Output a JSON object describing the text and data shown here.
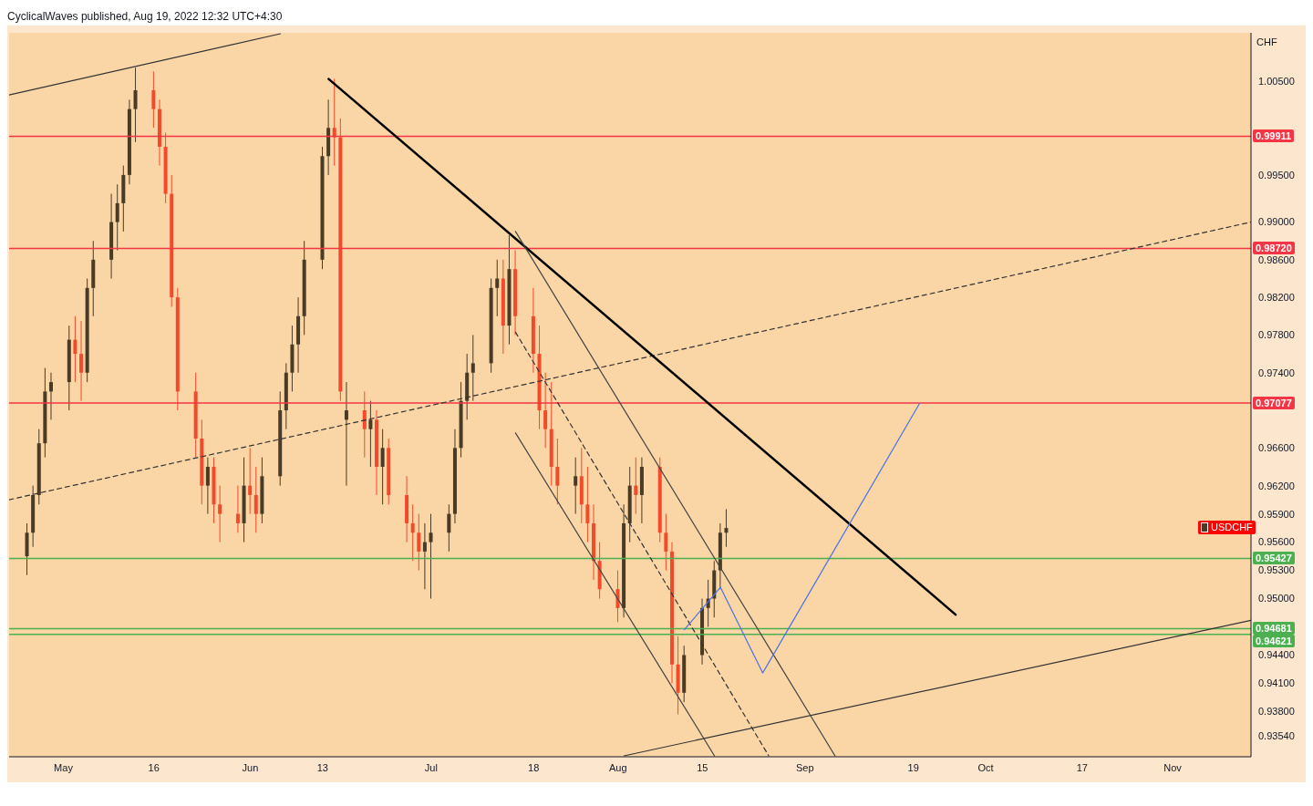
{
  "chart_data": {
    "type": "candlestick",
    "title": "CyclicalWaves published, Aug 19, 2022 12:32 UTC+4:30",
    "ylabel": "CHF",
    "xlim": [
      "2022-04-22",
      "2022-11-14"
    ],
    "xticks": [
      {
        "value": "2022-05-01",
        "label": "May"
      },
      {
        "value": "2022-05-16",
        "label": "16"
      },
      {
        "value": "2022-06-01",
        "label": "Jun"
      },
      {
        "value": "2022-06-13",
        "label": "13"
      },
      {
        "value": "2022-07-01",
        "label": "Jul"
      },
      {
        "value": "2022-07-18",
        "label": "18"
      },
      {
        "value": "2022-08-01",
        "label": "Aug"
      },
      {
        "value": "2022-08-15",
        "label": "15"
      },
      {
        "value": "2022-09-01",
        "label": "Sep"
      },
      {
        "value": "2022-09-19",
        "label": "19"
      },
      {
        "value": "2022-10-01",
        "label": "Oct"
      },
      {
        "value": "2022-10-17",
        "label": "17"
      },
      {
        "value": "2022-11-01",
        "label": "Nov"
      }
    ],
    "ylim": [
      0.9332,
      1.0101
    ],
    "yticks": [
      {
        "value": 1.005,
        "label": "1.00500"
      },
      {
        "value": 0.995,
        "label": "0.99500"
      },
      {
        "value": 0.99,
        "label": "0.99000"
      },
      {
        "value": 0.986,
        "label": "0.98600"
      },
      {
        "value": 0.982,
        "label": "0.98200"
      },
      {
        "value": 0.978,
        "label": "0.97800"
      },
      {
        "value": 0.974,
        "label": "0.97400"
      },
      {
        "value": 0.966,
        "label": "0.96600"
      },
      {
        "value": 0.962,
        "label": "0.96200"
      },
      {
        "value": 0.959,
        "label": "0.95900"
      },
      {
        "value": 0.956,
        "label": "0.95600"
      },
      {
        "value": 0.953,
        "label": "0.95300"
      },
      {
        "value": 0.95,
        "label": "0.95000"
      },
      {
        "value": 0.944,
        "label": "0.94400"
      },
      {
        "value": 0.941,
        "label": "0.94100"
      },
      {
        "value": 0.938,
        "label": "0.93800"
      },
      {
        "value": 0.9354,
        "label": "0.93540"
      }
    ],
    "legend": "right",
    "ref_lines": [
      {
        "axis": "y",
        "value": 0.99911,
        "label": "0.99911",
        "color": "#f23645"
      },
      {
        "axis": "y",
        "value": 0.9872,
        "label": "0.98720",
        "color": "#f23645"
      },
      {
        "axis": "y",
        "value": 0.97077,
        "label": "0.97077",
        "color": "#f23645"
      },
      {
        "axis": "y",
        "value": 0.95427,
        "label": "0.95427",
        "color": "#4caf50"
      },
      {
        "axis": "y",
        "value": 0.94681,
        "label": "0.94681",
        "color": "#4caf50"
      },
      {
        "axis": "y",
        "value": 0.94621,
        "label": "0.94621",
        "color": "#4caf50"
      }
    ],
    "series": [
      {
        "name": "USDCHF",
        "color": "#ff0000",
        "x": [
          "2022-04-25",
          "2022-04-26",
          "2022-04-27",
          "2022-04-28",
          "2022-04-29",
          "2022-05-02",
          "2022-05-03",
          "2022-05-04",
          "2022-05-05",
          "2022-05-06",
          "2022-05-09",
          "2022-05-10",
          "2022-05-11",
          "2022-05-12",
          "2022-05-13",
          "2022-05-16",
          "2022-05-17",
          "2022-05-18",
          "2022-05-19",
          "2022-05-20",
          "2022-05-23",
          "2022-05-24",
          "2022-05-25",
          "2022-05-26",
          "2022-05-27",
          "2022-05-30",
          "2022-05-31",
          "2022-06-01",
          "2022-06-02",
          "2022-06-03",
          "2022-06-06",
          "2022-06-07",
          "2022-06-08",
          "2022-06-09",
          "2022-06-10",
          "2022-06-13",
          "2022-06-14",
          "2022-06-15",
          "2022-06-16",
          "2022-06-17",
          "2022-06-20",
          "2022-06-21",
          "2022-06-22",
          "2022-06-23",
          "2022-06-24",
          "2022-06-27",
          "2022-06-28",
          "2022-06-29",
          "2022-06-30",
          "2022-07-01",
          "2022-07-04",
          "2022-07-05",
          "2022-07-06",
          "2022-07-07",
          "2022-07-08",
          "2022-07-11",
          "2022-07-12",
          "2022-07-13",
          "2022-07-14",
          "2022-07-15",
          "2022-07-18",
          "2022-07-19",
          "2022-07-20",
          "2022-07-21",
          "2022-07-22",
          "2022-07-25",
          "2022-07-26",
          "2022-07-27",
          "2022-07-28",
          "2022-07-29",
          "2022-08-01",
          "2022-08-02",
          "2022-08-03",
          "2022-08-04",
          "2022-08-05",
          "2022-08-08",
          "2022-08-09",
          "2022-08-10",
          "2022-08-11",
          "2022-08-12",
          "2022-08-15",
          "2022-08-16",
          "2022-08-17",
          "2022-08-18",
          "2022-08-19"
        ],
        "ohlc": [
          [
            0.9545,
            0.958,
            0.9525,
            0.957
          ],
          [
            0.957,
            0.962,
            0.9555,
            0.961
          ],
          [
            0.961,
            0.968,
            0.96,
            0.9665
          ],
          [
            0.9665,
            0.9745,
            0.965,
            0.972
          ],
          [
            0.972,
            0.974,
            0.969,
            0.973
          ],
          [
            0.973,
            0.979,
            0.97,
            0.9775
          ],
          [
            0.9775,
            0.98,
            0.973,
            0.976
          ],
          [
            0.976,
            0.9795,
            0.971,
            0.974
          ],
          [
            0.974,
            0.984,
            0.973,
            0.983
          ],
          [
            0.983,
            0.988,
            0.98,
            0.986
          ],
          [
            0.986,
            0.993,
            0.984,
            0.99
          ],
          [
            0.99,
            0.994,
            0.987,
            0.992
          ],
          [
            0.992,
            0.996,
            0.989,
            0.995
          ],
          [
            0.995,
            1.003,
            0.994,
            1.002
          ],
          [
            1.002,
            1.0064,
            0.9985,
            1.004
          ],
          [
            1.004,
            1.006,
            1,
            1.002
          ],
          [
            1.002,
            1.003,
            0.996,
            0.998
          ],
          [
            0.998,
            0.9995,
            0.992,
            0.993
          ],
          [
            0.993,
            0.995,
            0.981,
            0.982
          ],
          [
            0.982,
            0.983,
            0.97,
            0.972
          ],
          [
            0.972,
            0.974,
            0.965,
            0.967
          ],
          [
            0.967,
            0.969,
            0.96,
            0.962
          ],
          [
            0.962,
            0.965,
            0.959,
            0.964
          ],
          [
            0.964,
            0.965,
            0.958,
            0.96
          ],
          [
            0.96,
            0.962,
            0.956,
            0.959
          ],
          [
            0.959,
            0.962,
            0.957,
            0.958
          ],
          [
            0.958,
            0.965,
            0.956,
            0.962
          ],
          [
            0.962,
            0.966,
            0.959,
            0.961
          ],
          [
            0.961,
            0.964,
            0.957,
            0.959
          ],
          [
            0.959,
            0.965,
            0.958,
            0.963
          ],
          [
            0.963,
            0.972,
            0.962,
            0.97
          ],
          [
            0.97,
            0.975,
            0.968,
            0.974
          ],
          [
            0.974,
            0.979,
            0.972,
            0.977
          ],
          [
            0.977,
            0.982,
            0.974,
            0.98
          ],
          [
            0.98,
            0.988,
            0.978,
            0.986
          ],
          [
            0.986,
            0.998,
            0.985,
            0.997
          ],
          [
            0.997,
            1.003,
            0.995,
            1
          ],
          [
            1,
            1.0052,
            0.996,
            0.999
          ],
          [
            0.999,
            1.001,
            0.971,
            0.972
          ],
          [
            0.969,
            0.973,
            0.962,
            0.97
          ],
          [
            0.97,
            0.972,
            0.965,
            0.968
          ],
          [
            0.968,
            0.971,
            0.964,
            0.969
          ],
          [
            0.969,
            0.97,
            0.961,
            0.964
          ],
          [
            0.964,
            0.968,
            0.96,
            0.966
          ],
          [
            0.966,
            0.967,
            0.96,
            0.961
          ],
          [
            0.961,
            0.963,
            0.956,
            0.958
          ],
          [
            0.958,
            0.96,
            0.954,
            0.957
          ],
          [
            0.957,
            0.959,
            0.953,
            0.955
          ],
          [
            0.955,
            0.958,
            0.951,
            0.956
          ],
          [
            0.956,
            0.959,
            0.95,
            0.957
          ],
          [
            0.957,
            0.96,
            0.955,
            0.959
          ],
          [
            0.959,
            0.968,
            0.958,
            0.966
          ],
          [
            0.966,
            0.973,
            0.965,
            0.971
          ],
          [
            0.971,
            0.976,
            0.969,
            0.974
          ],
          [
            0.974,
            0.978,
            0.971,
            0.975
          ],
          [
            0.975,
            0.984,
            0.974,
            0.983
          ],
          [
            0.983,
            0.986,
            0.98,
            0.984
          ],
          [
            0.984,
            0.986,
            0.976,
            0.979
          ],
          [
            0.979,
            0.9886,
            0.977,
            0.985
          ],
          [
            0.985,
            0.987,
            0.978,
            0.98
          ],
          [
            0.98,
            0.983,
            0.974,
            0.976
          ],
          [
            0.976,
            0.979,
            0.968,
            0.97
          ],
          [
            0.97,
            0.974,
            0.966,
            0.968
          ],
          [
            0.968,
            0.973,
            0.962,
            0.964
          ],
          [
            0.964,
            0.967,
            0.96,
            0.962
          ],
          [
            0.962,
            0.965,
            0.959,
            0.963
          ],
          [
            0.963,
            0.966,
            0.958,
            0.96
          ],
          [
            0.96,
            0.964,
            0.956,
            0.958
          ],
          [
            0.958,
            0.96,
            0.952,
            0.954
          ],
          [
            0.954,
            0.956,
            0.95,
            0.951
          ],
          [
            0.951,
            0.953,
            0.9475,
            0.949
          ],
          [
            0.949,
            0.96,
            0.948,
            0.958
          ],
          [
            0.958,
            0.964,
            0.956,
            0.962
          ],
          [
            0.962,
            0.965,
            0.959,
            0.961
          ],
          [
            0.961,
            0.965,
            0.958,
            0.964
          ],
          [
            0.964,
            0.965,
            0.956,
            0.957
          ],
          [
            0.957,
            0.959,
            0.953,
            0.955
          ],
          [
            0.955,
            0.956,
            0.941,
            0.943
          ],
          [
            0.943,
            0.946,
            0.9377,
            0.94
          ],
          [
            0.94,
            0.945,
            0.939,
            0.944
          ],
          [
            0.944,
            0.95,
            0.943,
            0.949
          ],
          [
            0.949,
            0.952,
            0.947,
            0.95
          ],
          [
            0.95,
            0.954,
            0.948,
            0.953
          ],
          [
            0.953,
            0.958,
            0.951,
            0.957
          ],
          [
            0.957,
            0.9595,
            0.9555,
            0.9575
          ]
        ],
        "colors": [
          "#4a3b24",
          "#4a3b24",
          "#4a3b24",
          "#4a3b24",
          "#4a3b24",
          "#4a3b24",
          "#f44a2c",
          "#f44a2c",
          "#4a3b24",
          "#4a3b24",
          "#4a3b24",
          "#4a3b24",
          "#4a3b24",
          "#4a3b24",
          "#4a3b24",
          "#f44a2c",
          "#f44a2c",
          "#f44a2c",
          "#f44a2c",
          "#f44a2c",
          "#f44a2c",
          "#f44a2c",
          "#4a3b24",
          "#f44a2c",
          "#f44a2c",
          "#f44a2c",
          "#4a3b24",
          "#f44a2c",
          "#f44a2c",
          "#4a3b24",
          "#4a3b24",
          "#4a3b24",
          "#4a3b24",
          "#4a3b24",
          "#4a3b24",
          "#4a3b24",
          "#4a3b24",
          "#f44a2c",
          "#f44a2c",
          "#4a3b24",
          "#f44a2c",
          "#4a3b24",
          "#f44a2c",
          "#4a3b24",
          "#f44a2c",
          "#f44a2c",
          "#f44a2c",
          "#f44a2c",
          "#4a3b24",
          "#4a3b24",
          "#4a3b24",
          "#4a3b24",
          "#4a3b24",
          "#4a3b24",
          "#4a3b24",
          "#4a3b24",
          "#4a3b24",
          "#f44a2c",
          "#4a3b24",
          "#f44a2c",
          "#f44a2c",
          "#f44a2c",
          "#f44a2c",
          "#f44a2c",
          "#f44a2c",
          "#4a3b24",
          "#f44a2c",
          "#f44a2c",
          "#f44a2c",
          "#f44a2c",
          "#f44a2c",
          "#4a3b24",
          "#4a3b24",
          "#f44a2c",
          "#4a3b24",
          "#f44a2c",
          "#f44a2c",
          "#f44a2c",
          "#f44a2c",
          "#4a3b24",
          "#4a3b24",
          "#4a3b24",
          "#4a3b24",
          "#4a3b24",
          "#4a3b24"
        ]
      },
      {
        "type": "line",
        "color": "#333333",
        "line_style": "solid",
        "x": [
          "2022-04-22",
          "2022-06-06"
        ],
        "values": [
          1.0035,
          1.01
        ]
      },
      {
        "type": "line",
        "color": "#333333",
        "line_style": "solid",
        "x": [
          "2022-08-02",
          "2022-11-14"
        ],
        "values": [
          0.9333,
          0.9477
        ]
      },
      {
        "type": "line",
        "color": "#333333",
        "line_style": "dashed",
        "x": [
          "2022-04-22",
          "2022-11-14"
        ],
        "values": [
          0.9605,
          0.99
        ]
      },
      {
        "type": "line",
        "color": "#000000",
        "line_style": "solid",
        "x": [
          "2022-06-14",
          "2022-09-26"
        ],
        "values": [
          1.0052,
          0.9483
        ]
      },
      {
        "type": "line",
        "color": "#444444",
        "line_style": "solid",
        "x": [
          "2022-07-15",
          "2022-09-06"
        ],
        "values": [
          0.989,
          0.9333
        ]
      },
      {
        "type": "line",
        "color": "#444444",
        "line_style": "solid",
        "x": [
          "2022-07-15",
          "2022-08-17"
        ],
        "values": [
          0.9676,
          0.9333
        ]
      },
      {
        "type": "line",
        "color": "#333333",
        "line_style": "dashed",
        "x": [
          "2022-07-15",
          "2022-08-26"
        ],
        "values": [
          0.9783,
          0.9333
        ]
      },
      {
        "type": "line",
        "color": "#4a72e8",
        "line_style": "solid",
        "x": [
          "2022-08-12",
          "2022-08-18",
          "2022-08-25",
          "2022-09-20"
        ],
        "values": [
          0.9467,
          0.9512,
          0.9421,
          0.9707
        ]
      }
    ]
  }
}
